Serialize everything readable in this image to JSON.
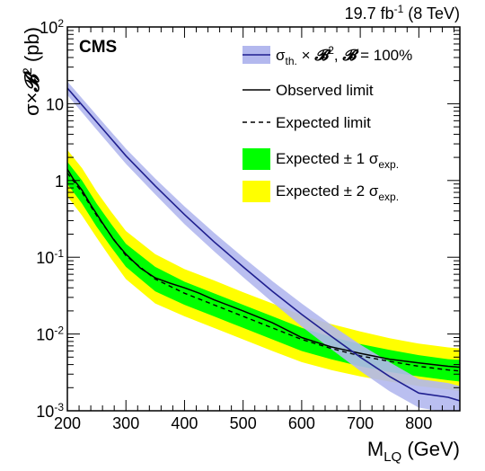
{
  "chart_data": {
    "type": "line",
    "header": {
      "lumi_value": "19.7 fb",
      "lumi_exp": "-1",
      "lumi_energy": " (8 TeV)"
    },
    "experiment_label": "CMS",
    "xlabel": {
      "main": "M",
      "sub": "LQ",
      "unit": " (GeV)"
    },
    "ylabel": {
      "sigma": "σ×",
      "B": "𝓑",
      "exp": "2",
      "unit": " (pb)"
    },
    "xlim": [
      200,
      870
    ],
    "ylim": [
      0.001,
      100
    ],
    "yscale": "log",
    "x_ticks": [
      "200",
      "300",
      "400",
      "500",
      "600",
      "700",
      "800"
    ],
    "y_ticks": [
      {
        "value": 100,
        "base": "10",
        "exp": "2"
      },
      {
        "value": 10,
        "base": "10",
        "exp": ""
      },
      {
        "value": 1,
        "base": "1",
        "exp": ""
      },
      {
        "value": 0.1,
        "base": "10",
        "exp": "-1"
      },
      {
        "value": 0.01,
        "base": "10",
        "exp": "-2"
      },
      {
        "value": 0.001,
        "base": "10",
        "exp": "-3"
      }
    ],
    "legend": {
      "placement": "top-right",
      "theory": {
        "a": "σ",
        "a_sub": "th.",
        "b": " × ",
        "c": "𝓑",
        "c_sup": "2",
        "d": ", ",
        "e": "𝓑",
        "f": " = 100%"
      },
      "observed": "Observed limit",
      "expected": "Expected limit",
      "band1": {
        "text": "Expected ",
        "pm": "± 1 σ",
        "sub": "exp."
      },
      "band2": {
        "text": "Expected ",
        "pm": "± 2 σ",
        "sub": "exp."
      }
    },
    "colors": {
      "theory_line": "#1f1f8f",
      "theory_band": "#b3b8ee",
      "band1": "#00ff00",
      "band2": "#ffff00",
      "observed": "#000000",
      "expected": "#000000"
    },
    "series": [
      {
        "name": "Observed limit",
        "x": [
          200,
          210,
          225,
          240,
          260,
          280,
          300,
          325,
          350,
          375,
          400,
          425,
          450,
          500,
          550,
          600,
          650,
          700,
          750,
          800,
          850,
          870
        ],
        "y": [
          1.4,
          1.05,
          0.75,
          0.48,
          0.28,
          0.165,
          0.11,
          0.072,
          0.054,
          0.046,
          0.04,
          0.034,
          0.028,
          0.02,
          0.014,
          0.009,
          0.0068,
          0.0056,
          0.0047,
          0.0042,
          0.0038,
          0.0037
        ]
      },
      {
        "name": "Expected limit",
        "x": [
          200,
          225,
          250,
          275,
          300,
          350,
          400,
          450,
          500,
          550,
          600,
          650,
          700,
          750,
          800,
          850,
          870
        ],
        "y": [
          1.25,
          0.7,
          0.35,
          0.19,
          0.105,
          0.052,
          0.034,
          0.024,
          0.017,
          0.012,
          0.0085,
          0.0065,
          0.0052,
          0.0044,
          0.0038,
          0.0034,
          0.0033
        ]
      },
      {
        "name": "Theory",
        "x": [
          200,
          250,
          300,
          350,
          400,
          450,
          500,
          550,
          600,
          650,
          700,
          750,
          800,
          850,
          870
        ],
        "y": [
          16,
          5.8,
          2.1,
          0.85,
          0.36,
          0.16,
          0.075,
          0.036,
          0.018,
          0.0094,
          0.005,
          0.0028,
          0.0017,
          0.0015,
          0.00135
        ]
      }
    ],
    "bands": {
      "x": [
        200,
        225,
        250,
        275,
        300,
        350,
        400,
        450,
        500,
        550,
        600,
        650,
        700,
        750,
        800,
        850,
        870
      ],
      "band1_lo": [
        0.9,
        0.5,
        0.25,
        0.135,
        0.075,
        0.036,
        0.024,
        0.017,
        0.012,
        0.0085,
        0.006,
        0.0047,
        0.0038,
        0.0032,
        0.0028,
        0.0025,
        0.0024
      ],
      "band1_hi": [
        1.75,
        1.0,
        0.5,
        0.27,
        0.15,
        0.075,
        0.048,
        0.034,
        0.024,
        0.017,
        0.012,
        0.0092,
        0.0074,
        0.0062,
        0.0053,
        0.0047,
        0.0046
      ],
      "band2_lo": [
        0.62,
        0.35,
        0.18,
        0.095,
        0.052,
        0.025,
        0.017,
        0.012,
        0.0085,
        0.006,
        0.0043,
        0.0034,
        0.0028,
        0.0024,
        0.0021,
        0.0019,
        0.0018
      ],
      "band2_hi": [
        2.5,
        1.45,
        0.72,
        0.39,
        0.22,
        0.11,
        0.07,
        0.05,
        0.035,
        0.025,
        0.0175,
        0.0135,
        0.0108,
        0.0088,
        0.0075,
        0.0067,
        0.0065
      ],
      "theory_lo": [
        13,
        4.6,
        1.65,
        0.66,
        0.27,
        0.12,
        0.055,
        0.026,
        0.0125,
        0.0064,
        0.0033,
        0.0018,
        0.0011,
        0.00095,
        0.00085
      ],
      "theory_hi": [
        19.5,
        7.1,
        2.6,
        1.06,
        0.46,
        0.21,
        0.1,
        0.049,
        0.025,
        0.0132,
        0.0073,
        0.0043,
        0.0026,
        0.0023,
        0.0021
      ]
    }
  }
}
